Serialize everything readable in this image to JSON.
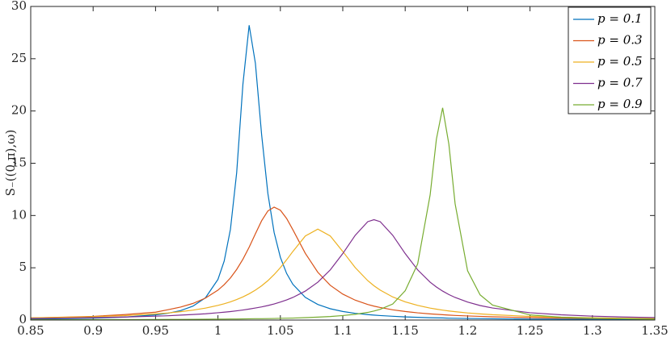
{
  "chart_data": {
    "type": "line",
    "y_label": "S₋((0,π),ω)",
    "x": [
      0.85,
      0.875,
      0.9,
      0.925,
      0.95,
      0.96,
      0.97,
      0.98,
      0.99,
      1.0,
      1.005,
      1.01,
      1.015,
      1.02,
      1.025,
      1.03,
      1.035,
      1.04,
      1.045,
      1.05,
      1.055,
      1.06,
      1.07,
      1.08,
      1.09,
      1.1,
      1.11,
      1.12,
      1.125,
      1.13,
      1.14,
      1.15,
      1.16,
      1.17,
      1.175,
      1.18,
      1.185,
      1.19,
      1.2,
      1.21,
      1.22,
      1.25,
      1.275,
      1.3,
      1.325,
      1.35
    ],
    "series": [
      {
        "name": "p = 0.1",
        "color": "#0072BD",
        "values": [
          0.09,
          0.13,
          0.18,
          0.28,
          0.49,
          0.65,
          0.9,
          1.33,
          2.13,
          3.89,
          5.64,
          8.68,
          14.1,
          22.56,
          28.2,
          24.56,
          17.71,
          12.1,
          8.38,
          6.0,
          4.46,
          3.42,
          2.17,
          1.49,
          1.08,
          0.82,
          0.64,
          0.52,
          0.47,
          0.43,
          0.36,
          0.3,
          0.26,
          0.22,
          0.21,
          0.2,
          0.18,
          0.17,
          0.15,
          0.14,
          0.12,
          0.09,
          0.08,
          0.06,
          0.05,
          0.05
        ]
      },
      {
        "name": "p = 0.3",
        "color": "#D95319",
        "values": [
          0.2,
          0.27,
          0.35,
          0.52,
          0.75,
          0.99,
          1.24,
          1.59,
          2.1,
          2.86,
          3.39,
          4.03,
          4.84,
          5.82,
          6.97,
          8.25,
          9.5,
          10.44,
          10.8,
          10.51,
          9.72,
          8.64,
          6.38,
          4.57,
          3.32,
          2.48,
          1.9,
          1.49,
          1.33,
          1.2,
          0.98,
          0.82,
          0.69,
          0.59,
          0.55,
          0.51,
          0.47,
          0.44,
          0.39,
          0.35,
          0.31,
          0.23,
          0.18,
          0.15,
          0.12,
          0.1
        ]
      },
      {
        "name": "p = 0.5",
        "color": "#EDB120",
        "values": [
          0.2,
          0.25,
          0.32,
          0.42,
          0.59,
          0.68,
          0.8,
          0.95,
          1.14,
          1.4,
          1.56,
          1.74,
          1.96,
          2.21,
          2.51,
          2.86,
          3.28,
          3.77,
          4.35,
          5.01,
          5.76,
          6.56,
          8.04,
          8.7,
          8.04,
          6.56,
          5.01,
          3.77,
          3.28,
          2.86,
          2.21,
          1.74,
          1.4,
          1.14,
          1.04,
          0.95,
          0.87,
          0.8,
          0.68,
          0.59,
          0.51,
          0.35,
          0.27,
          0.21,
          0.17,
          0.14
        ]
      },
      {
        "name": "p = 0.7",
        "color": "#7E2F8E",
        "values": [
          0.15,
          0.18,
          0.23,
          0.29,
          0.37,
          0.41,
          0.47,
          0.53,
          0.6,
          0.7,
          0.75,
          0.81,
          0.88,
          0.96,
          1.05,
          1.15,
          1.26,
          1.39,
          1.54,
          1.72,
          1.92,
          2.16,
          2.77,
          3.62,
          4.8,
          6.36,
          8.11,
          9.41,
          9.6,
          9.41,
          8.11,
          6.36,
          4.8,
          3.62,
          3.16,
          2.77,
          2.44,
          2.16,
          1.72,
          1.39,
          1.15,
          0.7,
          0.5,
          0.37,
          0.29,
          0.23
        ]
      },
      {
        "name": "p = 0.9",
        "color": "#77AC30",
        "values": [
          0.03,
          0.03,
          0.04,
          0.04,
          0.05,
          0.06,
          0.06,
          0.07,
          0.08,
          0.09,
          0.09,
          0.1,
          0.1,
          0.11,
          0.12,
          0.13,
          0.13,
          0.14,
          0.15,
          0.17,
          0.18,
          0.19,
          0.23,
          0.28,
          0.34,
          0.43,
          0.55,
          0.73,
          0.86,
          1.03,
          1.53,
          2.8,
          5.37,
          11.98,
          17.3,
          20.3,
          16.82,
          11.12,
          4.71,
          2.41,
          1.43,
          0.49,
          0.27,
          0.17,
          0.12,
          0.08
        ]
      }
    ],
    "xlim": [
      0.85,
      1.35
    ],
    "xticks": [
      0.85,
      0.9,
      0.95,
      1,
      1.05,
      1.1,
      1.15,
      1.2,
      1.25,
      1.3,
      1.35
    ],
    "ylim": [
      0,
      30
    ],
    "yticks": [
      0,
      5,
      10,
      15,
      20,
      25,
      30
    ],
    "grid": false,
    "legend": "top-right"
  }
}
